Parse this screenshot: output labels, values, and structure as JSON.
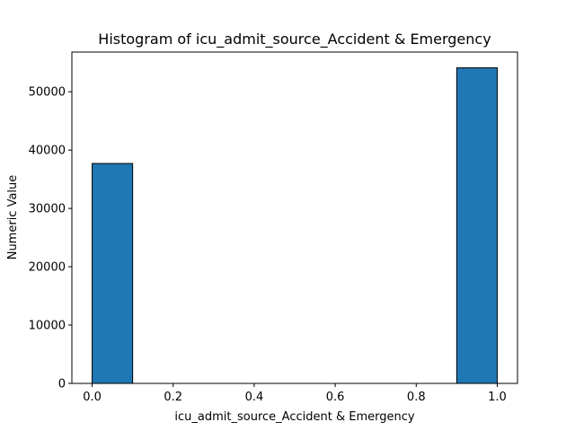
{
  "chart_data": {
    "type": "bar",
    "title": "Histogram of icu_admit_source_Accident & Emergency",
    "xlabel": "icu_admit_source_Accident & Emergency",
    "ylabel": "Numeric Value",
    "xlim": [
      -0.05,
      1.05
    ],
    "ylim": [
      0,
      56800
    ],
    "xticks": [
      0.0,
      0.2,
      0.4,
      0.6,
      0.8,
      1.0
    ],
    "xtick_labels": [
      "0.0",
      "0.2",
      "0.4",
      "0.6",
      "0.8",
      "1.0"
    ],
    "yticks": [
      0,
      10000,
      20000,
      30000,
      40000,
      50000
    ],
    "ytick_labels": [
      "0",
      "10000",
      "20000",
      "30000",
      "40000",
      "50000"
    ],
    "bins": [
      {
        "x0": 0.0,
        "x1": 0.1,
        "value": 37700
      },
      {
        "x0": 0.1,
        "x1": 0.2,
        "value": 0
      },
      {
        "x0": 0.2,
        "x1": 0.3,
        "value": 0
      },
      {
        "x0": 0.3,
        "x1": 0.4,
        "value": 0
      },
      {
        "x0": 0.4,
        "x1": 0.5,
        "value": 0
      },
      {
        "x0": 0.5,
        "x1": 0.6,
        "value": 0
      },
      {
        "x0": 0.6,
        "x1": 0.7,
        "value": 0
      },
      {
        "x0": 0.7,
        "x1": 0.8,
        "value": 0
      },
      {
        "x0": 0.8,
        "x1": 0.9,
        "value": 0
      },
      {
        "x0": 0.9,
        "x1": 1.0,
        "value": 54100
      }
    ],
    "bar_color": "#1f77b4",
    "edge_color": "#000000",
    "grid": false,
    "legend": "none"
  }
}
